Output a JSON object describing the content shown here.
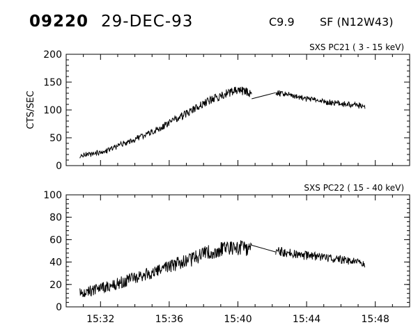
{
  "header": {
    "flare_id": "09220",
    "date": "29-DEC-93",
    "goes_class": "C9.9",
    "location": "SF (N12W43)"
  },
  "chart_data": [
    {
      "type": "line",
      "title": "SXS PC21  (  3 - 15 keV)",
      "ylabel": "CTS/SEC",
      "xlabel": "",
      "x_range_minutes_after_15_00": [
        30,
        50
      ],
      "ylim": [
        0,
        200
      ],
      "yticks": [
        0,
        50,
        100,
        150,
        200
      ],
      "xticks_minutes_after_15_00": [
        32,
        36,
        40,
        44,
        48
      ],
      "grid": false,
      "series": [
        {
          "points_minutes_after_15_00": [
            [
              30.8,
              18
            ],
            [
              31.2,
              20
            ],
            [
              31.6,
              21
            ],
            [
              32.0,
              24
            ],
            [
              32.4,
              27
            ],
            [
              32.8,
              32
            ],
            [
              33.2,
              38
            ],
            [
              33.6,
              42
            ],
            [
              34.0,
              47
            ],
            [
              34.4,
              53
            ],
            [
              34.8,
              58
            ],
            [
              35.2,
              63
            ],
            [
              35.6,
              70
            ],
            [
              36.0,
              76
            ],
            [
              36.4,
              84
            ],
            [
              36.8,
              90
            ],
            [
              37.2,
              97
            ],
            [
              37.6,
              105
            ],
            [
              38.0,
              112
            ],
            [
              38.4,
              118
            ],
            [
              38.8,
              123
            ],
            [
              39.2,
              128
            ],
            [
              39.6,
              132
            ],
            [
              40.0,
              135
            ],
            [
              40.4,
              133
            ],
            [
              40.8,
              130
            ]
          ],
          "noise": 7
        },
        {
          "points_minutes_after_15_00": [
            [
              40.8,
              120
            ],
            [
              42.2,
              131
            ]
          ],
          "noise": 0
        },
        {
          "points_minutes_after_15_00": [
            [
              42.2,
              131
            ],
            [
              42.8,
              128
            ],
            [
              43.4,
              124
            ],
            [
              44.0,
              120
            ],
            [
              44.6,
              117
            ],
            [
              45.2,
              114
            ],
            [
              45.8,
              112
            ],
            [
              46.4,
              110
            ],
            [
              47.0,
              108
            ],
            [
              47.4,
              105
            ]
          ],
          "noise": 5
        }
      ]
    },
    {
      "type": "line",
      "title": "SXS PC22  ( 15 - 40 keV)",
      "ylabel": "",
      "xlabel": "",
      "x_range_minutes_after_15_00": [
        30,
        50
      ],
      "ylim": [
        0,
        100
      ],
      "yticks": [
        0,
        20,
        40,
        60,
        80,
        100
      ],
      "xticks_minutes_after_15_00": [
        32,
        36,
        40,
        44,
        48
      ],
      "xtick_labels": [
        "15:32",
        "15:36",
        "15:40",
        "15:44",
        "15:48"
      ],
      "grid": false,
      "series": [
        {
          "points_minutes_after_15_00": [
            [
              30.8,
              13
            ],
            [
              31.6,
              15
            ],
            [
              32.4,
              18
            ],
            [
              33.2,
              22
            ],
            [
              34.0,
              26
            ],
            [
              34.8,
              30
            ],
            [
              35.6,
              34
            ],
            [
              36.4,
              38
            ],
            [
              37.2,
              42
            ],
            [
              38.0,
              47
            ],
            [
              38.8,
              51
            ],
            [
              39.6,
              53
            ],
            [
              40.4,
              52
            ],
            [
              40.8,
              50
            ]
          ],
          "noise": 7
        },
        {
          "points_minutes_after_15_00": [
            [
              40.8,
              55
            ],
            [
              42.2,
              49
            ]
          ],
          "noise": 0
        },
        {
          "points_minutes_after_15_00": [
            [
              42.2,
              50
            ],
            [
              43.0,
              48
            ],
            [
              43.8,
              46
            ],
            [
              44.6,
              45
            ],
            [
              45.4,
              43
            ],
            [
              46.2,
              42
            ],
            [
              47.0,
              40
            ],
            [
              47.4,
              38
            ]
          ],
          "noise": 4
        }
      ]
    }
  ]
}
